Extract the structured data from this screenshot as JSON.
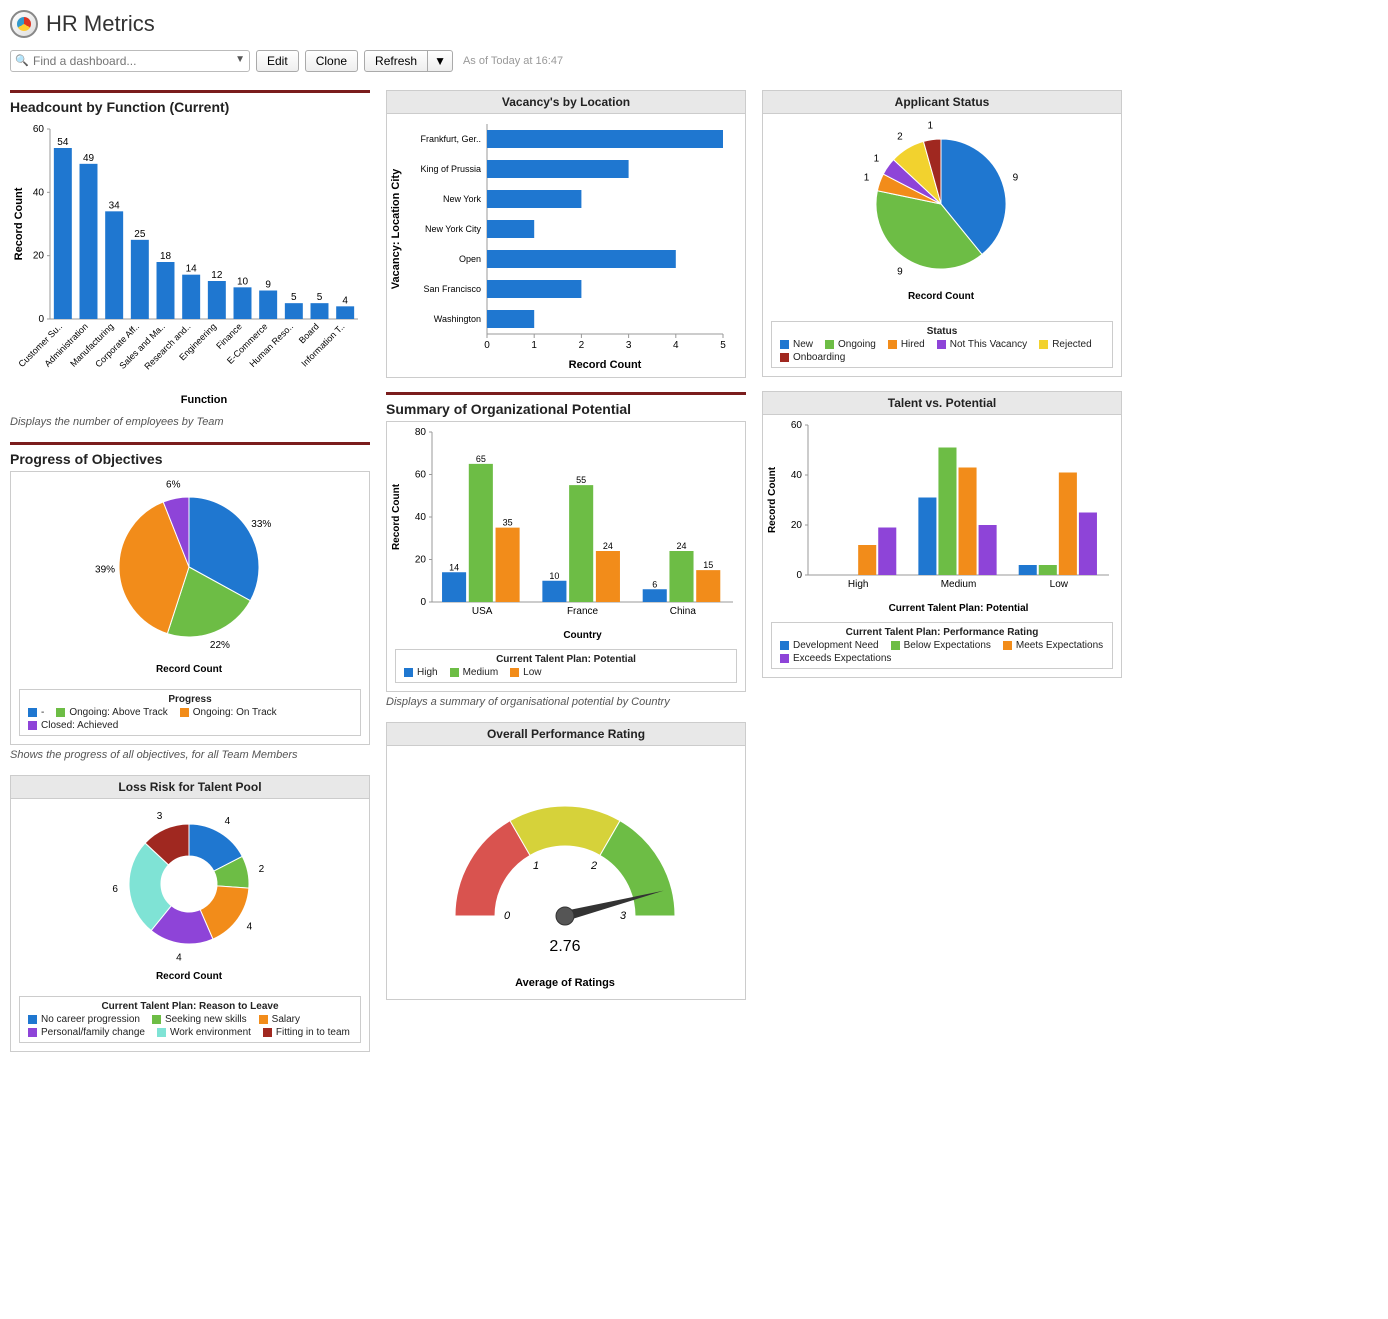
{
  "page": {
    "title": "HR Metrics",
    "search_placeholder": "Find a dashboard...",
    "buttons": {
      "edit": "Edit",
      "clone": "Clone",
      "refresh": "Refresh"
    },
    "timestamp": "As of Today at 16:47"
  },
  "palette": {
    "blue": "#1f77d0",
    "green": "#6dbd45",
    "orange": "#f28c1a",
    "purple": "#8e44d8",
    "teal": "#7fe3d5",
    "darkred": "#a02820",
    "yellow": "#f2d22e"
  },
  "headcount": {
    "title": "Headcount by Function (Current)",
    "caption": "Displays the number of employees by Team",
    "xlabel": "Function",
    "ylabel": "Record Count",
    "ylim": [
      0,
      60
    ],
    "ytick_step": 20,
    "bar_color": "#1f77d0",
    "categories": [
      "Customer Su..",
      "Administration",
      "Manufacturing",
      "Corporate Aff..",
      "Sales and Ma..",
      "Research and..",
      "Engineering",
      "Finance",
      "E-Commerce",
      "Human Reso..",
      "Board",
      "Information T.."
    ],
    "values": [
      54,
      49,
      34,
      25,
      18,
      14,
      12,
      10,
      9,
      5,
      5,
      4
    ]
  },
  "vacancies": {
    "title": "Vacancy's by Location",
    "xlabel": "Record Count",
    "ylabel": "Vacancy: Location City",
    "xlim": [
      0,
      5
    ],
    "xtick_step": 1,
    "bar_color": "#1f77d0",
    "categories": [
      "Frankfurt, Ger..",
      "King of Prussia",
      "New York",
      "New York City",
      "Open",
      "San Francisco",
      "Washington"
    ],
    "values": [
      5,
      3,
      2,
      1,
      4,
      2,
      1
    ]
  },
  "applicant": {
    "title": "Applicant Status",
    "center_label": "Record Count",
    "legend_title": "Status",
    "slices": [
      {
        "label": "New",
        "value": 9,
        "color": "#1f77d0"
      },
      {
        "label": "Ongoing",
        "value": 9,
        "color": "#6dbd45"
      },
      {
        "label": "Hired",
        "value": 1,
        "color": "#f28c1a"
      },
      {
        "label": "Not This Vacancy",
        "value": 1,
        "color": "#8e44d8"
      },
      {
        "label": "Rejected",
        "value": 2,
        "color": "#f2d22e"
      },
      {
        "label": "Onboarding",
        "value": 1,
        "color": "#a02820"
      }
    ]
  },
  "objectives": {
    "title": "Progress of Objectives",
    "caption": "Shows the progress of all objectives, for all Team Members",
    "center_label": "Record Count",
    "legend_title": "Progress",
    "slices": [
      {
        "label": "-",
        "value": 33,
        "pct": "33%",
        "color": "#1f77d0"
      },
      {
        "label": "Ongoing: Above Track",
        "value": 22,
        "pct": "22%",
        "color": "#6dbd45"
      },
      {
        "label": "Ongoing: On Track",
        "value": 39,
        "pct": "39%",
        "color": "#f28c1a"
      },
      {
        "label": "Closed: Achieved",
        "value": 6,
        "pct": "6%",
        "color": "#8e44d8"
      }
    ]
  },
  "org_potential": {
    "title": "Summary of Organizational Potential",
    "caption": "Displays a summary of organisational potential by Country",
    "xlabel": "Country",
    "ylabel": "Record Count",
    "legend_title": "Current Talent Plan: Potential",
    "ylim": [
      0,
      80
    ],
    "ytick_step": 20,
    "countries": [
      "USA",
      "France",
      "China"
    ],
    "series": [
      {
        "name": "High",
        "color": "#1f77d0",
        "values": [
          14,
          10,
          6
        ]
      },
      {
        "name": "Medium",
        "color": "#6dbd45",
        "values": [
          65,
          55,
          24
        ]
      },
      {
        "name": "Low",
        "color": "#f28c1a",
        "values": [
          35,
          24,
          15
        ]
      }
    ]
  },
  "talent_potential": {
    "title": "Talent vs. Potential",
    "xlabel": "Current Talent Plan: Potential",
    "ylabel": "Record Count",
    "legend_title": "Current Talent Plan: Performance Rating",
    "ylim": [
      0,
      60
    ],
    "ytick_step": 20,
    "groups": [
      "High",
      "Medium",
      "Low"
    ],
    "series": [
      {
        "name": "Development Need",
        "color": "#1f77d0",
        "values": [
          0,
          31,
          4
        ]
      },
      {
        "name": "Below Expectations",
        "color": "#6dbd45",
        "values": [
          0,
          51,
          4
        ]
      },
      {
        "name": "Meets Expectations",
        "color": "#f28c1a",
        "values": [
          12,
          43,
          41
        ]
      },
      {
        "name": "Exceeds Expectations",
        "color": "#8e44d8",
        "values": [
          19,
          20,
          25
        ]
      }
    ]
  },
  "loss_risk": {
    "title": "Loss Risk for Talent Pool",
    "center_label": "Record Count",
    "legend_title": "Current Talent Plan: Reason to Leave",
    "slices": [
      {
        "label": "No career progression",
        "value": 4,
        "color": "#1f77d0"
      },
      {
        "label": "Seeking new skills",
        "value": 2,
        "color": "#6dbd45"
      },
      {
        "label": "Salary",
        "value": 4,
        "color": "#f28c1a"
      },
      {
        "label": "Personal/family change",
        "value": 4,
        "color": "#8e44d8"
      },
      {
        "label": "Work environment",
        "value": 6,
        "color": "#7fe3d5"
      },
      {
        "label": "Fitting in to team",
        "value": 3,
        "color": "#a02820"
      }
    ]
  },
  "performance": {
    "title": "Overall Performance Rating",
    "subtitle": "Average of Ratings",
    "value": 2.76,
    "min": 0,
    "max": 3,
    "zones": [
      {
        "from": 0,
        "to": 1,
        "color": "#d9534f"
      },
      {
        "from": 1,
        "to": 2,
        "color": "#d6d23a"
      },
      {
        "from": 2,
        "to": 3,
        "color": "#6dbd45"
      }
    ]
  }
}
